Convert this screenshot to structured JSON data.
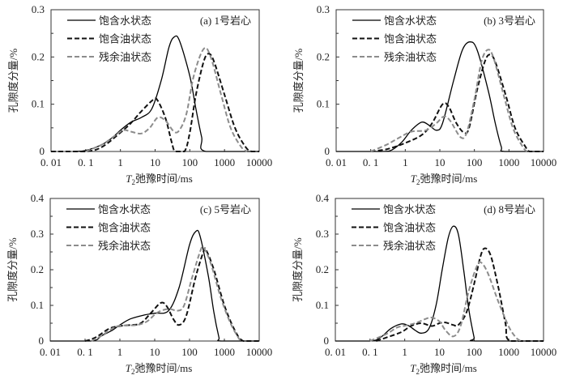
{
  "chart_data": [
    {
      "type": "line",
      "panel_label": "(a) 1号岩心",
      "xlabel_italic": "T",
      "xlabel_sub": "2",
      "xlabel_rest": "弛豫时间/ms",
      "ylabel": "孔隙度分量/%",
      "xscale": "log",
      "xlim": [
        0.01,
        10000
      ],
      "ylim": [
        0,
        0.3
      ],
      "xticks": [
        "0. 01",
        "0. 1",
        "1",
        "10",
        "100",
        "1000",
        "10000"
      ],
      "yticks": [
        "0",
        "0.1",
        "0.2",
        "0.3"
      ],
      "legend_position": "top-left",
      "series": [
        {
          "name": "饱含水状态",
          "style": "solid",
          "color": "#000000",
          "points": [
            [
              0.05,
              0
            ],
            [
              0.1,
              0.002
            ],
            [
              0.3,
              0.015
            ],
            [
              0.6,
              0.03
            ],
            [
              1,
              0.045
            ],
            [
              2,
              0.062
            ],
            [
              4,
              0.072
            ],
            [
              8,
              0.09
            ],
            [
              15,
              0.15
            ],
            [
              25,
              0.22
            ],
            [
              35,
              0.242
            ],
            [
              50,
              0.235
            ],
            [
              100,
              0.16
            ],
            [
              150,
              0.09
            ],
            [
              220,
              0.03
            ],
            [
              290,
              0
            ],
            [
              10000,
              0
            ]
          ]
        },
        {
          "name": "饱含油状态",
          "style": "dashed",
          "color": "#111111",
          "points": [
            [
              0.01,
              0
            ],
            [
              0.1,
              0
            ],
            [
              0.3,
              0.01
            ],
            [
              1,
              0.04
            ],
            [
              2,
              0.06
            ],
            [
              4,
              0.085
            ],
            [
              9,
              0.11
            ],
            [
              12,
              0.107
            ],
            [
              20,
              0.07
            ],
            [
              30,
              0.02
            ],
            [
              38,
              0
            ],
            [
              70,
              0
            ],
            [
              100,
              0.04
            ],
            [
              150,
              0.12
            ],
            [
              250,
              0.19
            ],
            [
              350,
              0.207
            ],
            [
              500,
              0.19
            ],
            [
              1000,
              0.12
            ],
            [
              2000,
              0.05
            ],
            [
              4000,
              0.01
            ],
            [
              6000,
              0
            ],
            [
              10000,
              0
            ]
          ]
        },
        {
          "name": "残余油状态",
          "style": "dashed",
          "color": "#8c8c8c",
          "points": [
            [
              0.1,
              0
            ],
            [
              0.3,
              0.015
            ],
            [
              0.6,
              0.03
            ],
            [
              1.2,
              0.045
            ],
            [
              2,
              0.042
            ],
            [
              4,
              0.038
            ],
            [
              7,
              0.05
            ],
            [
              12,
              0.072
            ],
            [
              20,
              0.065
            ],
            [
              35,
              0.042
            ],
            [
              50,
              0.045
            ],
            [
              80,
              0.08
            ],
            [
              130,
              0.16
            ],
            [
              250,
              0.217
            ],
            [
              400,
              0.2
            ],
            [
              800,
              0.12
            ],
            [
              1500,
              0.05
            ],
            [
              3000,
              0.01
            ],
            [
              4500,
              0
            ]
          ]
        }
      ]
    },
    {
      "type": "line",
      "panel_label": "(b) 3号岩心",
      "xlabel_italic": "T",
      "xlabel_sub": "2",
      "xlabel_rest": "弛豫时间/ms",
      "ylabel": "孔隙度分量/%",
      "xscale": "log",
      "xlim": [
        0.01,
        10000
      ],
      "ylim": [
        0,
        0.3
      ],
      "xticks": [
        "0. 01",
        "0. 1",
        "1",
        "10",
        "100",
        "1000",
        "10000"
      ],
      "yticks": [
        "0",
        "0.1",
        "0.2",
        "0.3"
      ],
      "legend_position": "top-left",
      "series": [
        {
          "name": "饱含水状态",
          "style": "solid",
          "color": "#000000",
          "points": [
            [
              0.01,
              0
            ],
            [
              0.2,
              0
            ],
            [
              0.4,
              0.003
            ],
            [
              0.8,
              0.02
            ],
            [
              1.5,
              0.045
            ],
            [
              3,
              0.062
            ],
            [
              5,
              0.055
            ],
            [
              8,
              0.045
            ],
            [
              12,
              0.06
            ],
            [
              25,
              0.15
            ],
            [
              45,
              0.215
            ],
            [
              75,
              0.232
            ],
            [
              120,
              0.215
            ],
            [
              250,
              0.13
            ],
            [
              400,
              0.06
            ],
            [
              600,
              0.01
            ],
            [
              750,
              0
            ],
            [
              10000,
              0
            ]
          ]
        },
        {
          "name": "饱含油状态",
          "style": "dashed",
          "color": "#111111",
          "points": [
            [
              0.1,
              0
            ],
            [
              0.3,
              0.005
            ],
            [
              1,
              0.018
            ],
            [
              3,
              0.035
            ],
            [
              6,
              0.06
            ],
            [
              12,
              0.1
            ],
            [
              18,
              0.095
            ],
            [
              30,
              0.06
            ],
            [
              50,
              0.04
            ],
            [
              70,
              0.05
            ],
            [
              120,
              0.13
            ],
            [
              200,
              0.19
            ],
            [
              280,
              0.205
            ],
            [
              400,
              0.19
            ],
            [
              800,
              0.12
            ],
            [
              1500,
              0.05
            ],
            [
              3000,
              0.01
            ],
            [
              4000,
              0
            ],
            [
              10000,
              0
            ]
          ]
        },
        {
          "name": "残余油状态",
          "style": "dashed",
          "color": "#8c8c8c",
          "points": [
            [
              0.1,
              0
            ],
            [
              0.3,
              0.015
            ],
            [
              0.7,
              0.03
            ],
            [
              1.5,
              0.042
            ],
            [
              4,
              0.045
            ],
            [
              8,
              0.06
            ],
            [
              13,
              0.074
            ],
            [
              20,
              0.065
            ],
            [
              40,
              0.03
            ],
            [
              60,
              0.04
            ],
            [
              100,
              0.11
            ],
            [
              160,
              0.19
            ],
            [
              240,
              0.215
            ],
            [
              350,
              0.2
            ],
            [
              700,
              0.12
            ],
            [
              1300,
              0.05
            ],
            [
              2500,
              0.01
            ],
            [
              3300,
              0
            ]
          ]
        }
      ]
    },
    {
      "type": "line",
      "panel_label": "(c) 5号岩心",
      "xlabel_italic": "T",
      "xlabel_sub": "2",
      "xlabel_rest": "弛豫时间/ms",
      "ylabel": "孔隙度分量/%",
      "xscale": "log",
      "xlim": [
        0.01,
        10000
      ],
      "ylim": [
        0,
        0.4
      ],
      "xticks": [
        "0. 01",
        "0. 1",
        "1",
        "10",
        "100",
        "1000",
        "10000"
      ],
      "yticks": [
        "0",
        "0.1",
        "0.2",
        "0.3",
        "0.4"
      ],
      "legend_position": "top-left",
      "series": [
        {
          "name": "饱含水状态",
          "style": "solid",
          "color": "#000000",
          "points": [
            [
              0.01,
              0
            ],
            [
              0.15,
              0
            ],
            [
              0.3,
              0.015
            ],
            [
              0.6,
              0.03
            ],
            [
              1,
              0.045
            ],
            [
              2,
              0.062
            ],
            [
              5,
              0.073
            ],
            [
              10,
              0.078
            ],
            [
              25,
              0.085
            ],
            [
              50,
              0.15
            ],
            [
              100,
              0.27
            ],
            [
              150,
              0.307
            ],
            [
              200,
              0.295
            ],
            [
              350,
              0.18
            ],
            [
              500,
              0.08
            ],
            [
              700,
              0.01
            ],
            [
              800,
              0
            ],
            [
              10000,
              0
            ]
          ]
        },
        {
          "name": "饱含油状态",
          "style": "dashed",
          "color": "#111111",
          "points": [
            [
              0.1,
              0
            ],
            [
              0.2,
              0.01
            ],
            [
              0.5,
              0.035
            ],
            [
              1,
              0.042
            ],
            [
              2,
              0.045
            ],
            [
              4,
              0.05
            ],
            [
              8,
              0.08
            ],
            [
              15,
              0.107
            ],
            [
              22,
              0.098
            ],
            [
              35,
              0.06
            ],
            [
              50,
              0.045
            ],
            [
              80,
              0.07
            ],
            [
              150,
              0.18
            ],
            [
              250,
              0.25
            ],
            [
              300,
              0.255
            ],
            [
              500,
              0.2
            ],
            [
              1000,
              0.1
            ],
            [
              2000,
              0.03
            ],
            [
              3500,
              0
            ],
            [
              10000,
              0
            ]
          ]
        },
        {
          "name": "残余油状态",
          "style": "dashed",
          "color": "#8c8c8c",
          "points": [
            [
              0.15,
              0
            ],
            [
              0.3,
              0.015
            ],
            [
              0.6,
              0.035
            ],
            [
              1,
              0.043
            ],
            [
              3,
              0.045
            ],
            [
              6,
              0.055
            ],
            [
              12,
              0.08
            ],
            [
              25,
              0.09
            ],
            [
              45,
              0.085
            ],
            [
              70,
              0.1
            ],
            [
              120,
              0.18
            ],
            [
              200,
              0.25
            ],
            [
              250,
              0.262
            ],
            [
              400,
              0.22
            ],
            [
              800,
              0.12
            ],
            [
              1500,
              0.05
            ],
            [
              2500,
              0.01
            ],
            [
              3000,
              0
            ]
          ]
        }
      ]
    },
    {
      "type": "line",
      "panel_label": "(d) 8号岩心",
      "xlabel_italic": "T",
      "xlabel_sub": "2",
      "xlabel_rest": "弛豫时间/ms",
      "ylabel": "孔隙度分量/%",
      "xscale": "log",
      "xlim": [
        0.01,
        10000
      ],
      "ylim": [
        0,
        0.4
      ],
      "xticks": [
        "0. 01",
        "0. 1",
        "1",
        "10",
        "100",
        "1000",
        "10000"
      ],
      "yticks": [
        "0",
        "0.1",
        "0.2",
        "0.3",
        "0.4"
      ],
      "legend_position": "top-left",
      "series": [
        {
          "name": "饱含水状态",
          "style": "solid",
          "color": "#000000",
          "points": [
            [
              0.01,
              0
            ],
            [
              0.1,
              0
            ],
            [
              0.2,
              0.01
            ],
            [
              0.4,
              0.035
            ],
            [
              0.8,
              0.048
            ],
            [
              1.3,
              0.043
            ],
            [
              2,
              0.03
            ],
            [
              3,
              0.022
            ],
            [
              5,
              0.035
            ],
            [
              8,
              0.1
            ],
            [
              12,
              0.2
            ],
            [
              18,
              0.29
            ],
            [
              25,
              0.322
            ],
            [
              35,
              0.3
            ],
            [
              50,
              0.2
            ],
            [
              70,
              0.09
            ],
            [
              100,
              0.01
            ],
            [
              110,
              0
            ],
            [
              10000,
              0
            ]
          ]
        },
        {
          "name": "饱含油状态",
          "style": "dashed",
          "color": "#111111",
          "points": [
            [
              0.15,
              0
            ],
            [
              0.3,
              0.01
            ],
            [
              0.8,
              0.025
            ],
            [
              1.5,
              0.042
            ],
            [
              3,
              0.05
            ],
            [
              6,
              0.042
            ],
            [
              10,
              0.05
            ],
            [
              15,
              0.052
            ],
            [
              25,
              0.045
            ],
            [
              35,
              0.045
            ],
            [
              60,
              0.08
            ],
            [
              100,
              0.16
            ],
            [
              150,
              0.235
            ],
            [
              200,
              0.26
            ],
            [
              300,
              0.24
            ],
            [
              500,
              0.15
            ],
            [
              800,
              0.05
            ],
            [
              1100,
              0
            ],
            [
              10000,
              0
            ]
          ]
        },
        {
          "name": "残余油状态",
          "style": "dashed",
          "color": "#8c8c8c",
          "points": [
            [
              0.1,
              0
            ],
            [
              0.3,
              0.02
            ],
            [
              0.6,
              0.038
            ],
            [
              1,
              0.043
            ],
            [
              2,
              0.05
            ],
            [
              4,
              0.062
            ],
            [
              6,
              0.066
            ],
            [
              10,
              0.055
            ],
            [
              15,
              0.03
            ],
            [
              25,
              0.013
            ],
            [
              40,
              0.04
            ],
            [
              70,
              0.14
            ],
            [
              120,
              0.21
            ],
            [
              160,
              0.22
            ],
            [
              250,
              0.19
            ],
            [
              500,
              0.11
            ],
            [
              1000,
              0.04
            ],
            [
              1600,
              0.01
            ],
            [
              2200,
              0
            ]
          ]
        }
      ]
    }
  ]
}
